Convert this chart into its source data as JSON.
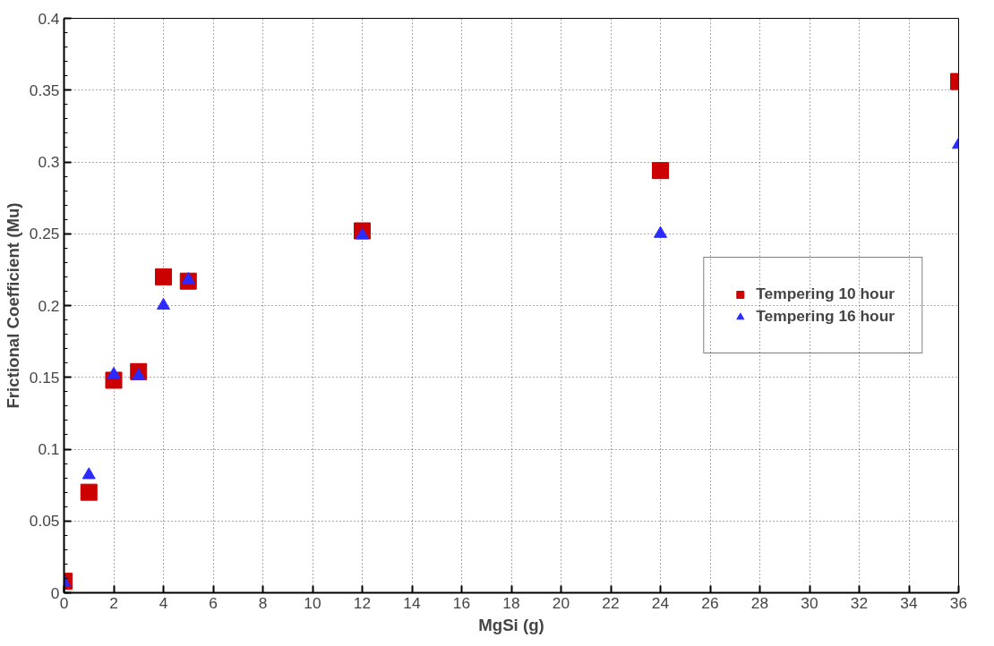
{
  "chart_data": {
    "type": "scatter",
    "xlabel": "MgSi (g)",
    "ylabel": "Frictional Coefficient (Mu)",
    "x": [
      0,
      1,
      2,
      3,
      4,
      5,
      12,
      24,
      36
    ],
    "series": [
      {
        "name": "Tempering 10 hour",
        "color": "#cc0000",
        "marker": "square",
        "values": [
          0.008,
          0.07,
          0.148,
          0.154,
          0.22,
          0.217,
          0.252,
          0.294,
          0.356
        ]
      },
      {
        "name": "Tempering 16 hour",
        "color": "#2b2bff",
        "marker": "triangle",
        "values": [
          0.007,
          0.082,
          0.152,
          0.151,
          0.2,
          0.218,
          0.249,
          0.25,
          0.312
        ]
      }
    ],
    "xlim": [
      0,
      36
    ],
    "xticks": [
      0,
      2,
      4,
      6,
      8,
      10,
      12,
      14,
      16,
      18,
      20,
      22,
      24,
      26,
      28,
      30,
      32,
      34,
      36
    ],
    "ylim": [
      0,
      0.4
    ],
    "yticks": [
      0,
      0.05,
      0.1,
      0.15,
      0.2,
      0.25,
      0.3,
      0.35,
      0.4
    ],
    "grid": true,
    "legend": "right"
  }
}
